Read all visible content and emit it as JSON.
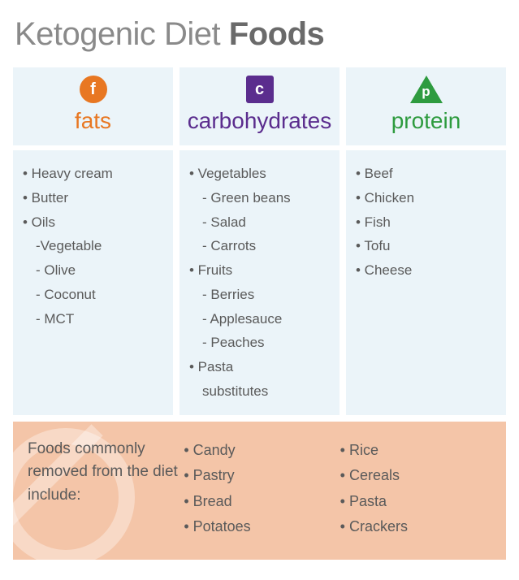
{
  "page": {
    "title_light": "Ketogenic Diet ",
    "title_bold": "Foods",
    "background_color": "#ffffff",
    "panel_color": "#ebf4f9",
    "text_color": "#5a5a5a"
  },
  "columns": [
    {
      "key": "fats",
      "title": "fats",
      "title_color": "#e87722",
      "icon_letter": "f",
      "icon_shape": "circle",
      "icon_bg": "#e87722",
      "items": [
        {
          "text": "Heavy cream",
          "level": 0
        },
        {
          "text": "Butter",
          "level": 0
        },
        {
          "text": "Oils",
          "level": 0
        },
        {
          "text": "Vegetable",
          "level": 1,
          "dash": true
        },
        {
          "text": "Olive",
          "level": 1
        },
        {
          "text": "Coconut",
          "level": 1
        },
        {
          "text": "MCT",
          "level": 1
        }
      ]
    },
    {
      "key": "carbohydrates",
      "title": "carbohydrates",
      "title_color": "#5b2d8e",
      "icon_letter": "c",
      "icon_shape": "square",
      "icon_bg": "#5b2d8e",
      "items": [
        {
          "text": "Vegetables",
          "level": 0
        },
        {
          "text": "Green beans",
          "level": 1
        },
        {
          "text": "Salad",
          "level": 1
        },
        {
          "text": "Carrots",
          "level": 1
        },
        {
          "text": "Fruits",
          "level": 0
        },
        {
          "text": "Berries",
          "level": 1
        },
        {
          "text": "Applesauce",
          "level": 1
        },
        {
          "text": "Peaches",
          "level": 1
        },
        {
          "text": "Pasta",
          "level": 0
        },
        {
          "text": "substitutes",
          "level": 1,
          "nobullet": true
        }
      ]
    },
    {
      "key": "protein",
      "title": "protein",
      "title_color": "#2e9b3f",
      "icon_letter": "p",
      "icon_shape": "triangle",
      "icon_bg": "#2e9b3f",
      "items": [
        {
          "text": "Beef",
          "level": 0
        },
        {
          "text": "Chicken",
          "level": 0
        },
        {
          "text": "Fish",
          "level": 0
        },
        {
          "text": "Tofu",
          "level": 0
        },
        {
          "text": "Cheese",
          "level": 0
        }
      ]
    }
  ],
  "removed": {
    "background_color": "#f4c5a8",
    "label": "Foods commonly removed from the diet include:",
    "col1": [
      "Candy",
      "Pastry",
      "Bread",
      "Potatoes"
    ],
    "col2": [
      "Rice",
      "Cereals",
      "Pasta",
      "Crackers"
    ]
  }
}
